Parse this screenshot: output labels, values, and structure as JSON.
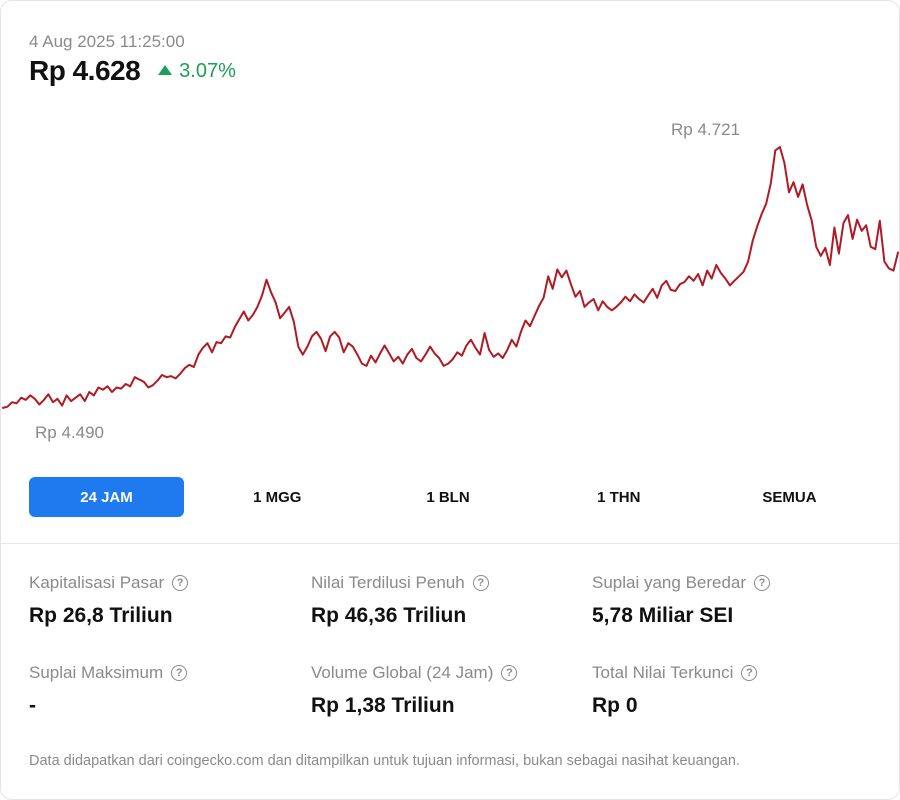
{
  "header": {
    "timestamp": "4 Aug 2025 11:25:00",
    "price": "Rp 4.628",
    "change": "3.07%",
    "change_color": "#1aa05a"
  },
  "chart_data": {
    "type": "line",
    "color": "#b01a24",
    "high_label": "Rp 4.721",
    "low_label": "Rp 4.490",
    "high": 4721,
    "low": 4490,
    "values": [
      4491,
      4492,
      4496,
      4495,
      4500,
      4498,
      4502,
      4499,
      4494,
      4498,
      4503,
      4496,
      4499,
      4493,
      4502,
      4497,
      4500,
      4503,
      4497,
      4505,
      4502,
      4509,
      4507,
      4510,
      4505,
      4509,
      4508,
      4512,
      4510,
      4518,
      4516,
      4514,
      4509,
      4511,
      4515,
      4520,
      4518,
      4519,
      4517,
      4521,
      4526,
      4529,
      4527,
      4538,
      4544,
      4548,
      4540,
      4549,
      4548,
      4554,
      4553,
      4562,
      4569,
      4576,
      4568,
      4573,
      4580,
      4590,
      4604,
      4593,
      4584,
      4570,
      4575,
      4580,
      4567,
      4545,
      4538,
      4545,
      4554,
      4558,
      4552,
      4541,
      4554,
      4558,
      4553,
      4540,
      4548,
      4545,
      4538,
      4530,
      4528,
      4537,
      4531,
      4539,
      4546,
      4539,
      4532,
      4536,
      4530,
      4538,
      4543,
      4535,
      4532,
      4538,
      4545,
      4539,
      4535,
      4528,
      4530,
      4534,
      4540,
      4537,
      4546,
      4551,
      4544,
      4538,
      4557,
      4542,
      4536,
      4539,
      4535,
      4542,
      4551,
      4545,
      4558,
      4568,
      4563,
      4572,
      4581,
      4588,
      4607,
      4596,
      4613,
      4606,
      4612,
      4600,
      4589,
      4594,
      4580,
      4584,
      4587,
      4577,
      4585,
      4580,
      4577,
      4580,
      4584,
      4589,
      4585,
      4591,
      4587,
      4584,
      4590,
      4596,
      4588,
      4599,
      4603,
      4595,
      4594,
      4600,
      4602,
      4607,
      4603,
      4609,
      4599,
      4612,
      4605,
      4617,
      4610,
      4605,
      4599,
      4603,
      4607,
      4611,
      4620,
      4638,
      4651,
      4662,
      4671,
      4689,
      4718,
      4721,
      4707,
      4681,
      4690,
      4677,
      4688,
      4670,
      4656,
      4633,
      4625,
      4632,
      4617,
      4650,
      4627,
      4654,
      4661,
      4640,
      4657,
      4647,
      4652,
      4633,
      4631,
      4656,
      4620,
      4614,
      4612,
      4628
    ]
  },
  "tabs": [
    {
      "label": "24 JAM",
      "active": true
    },
    {
      "label": "1 MGG",
      "active": false
    },
    {
      "label": "1 BLN",
      "active": false
    },
    {
      "label": "1 THN",
      "active": false
    },
    {
      "label": "SEMUA",
      "active": false
    }
  ],
  "stats": [
    {
      "label": "Kapitalisasi Pasar",
      "value": "Rp 26,8 Triliun",
      "icon": "help-circle-icon"
    },
    {
      "label": "Nilai Terdilusi Penuh",
      "value": "Rp 46,36 Triliun",
      "icon": "help-circle-icon"
    },
    {
      "label": "Suplai yang Beredar",
      "value": "5,78 Miliar SEI",
      "icon": "help-circle-icon"
    },
    {
      "label": "Suplai Maksimum",
      "value": "-",
      "icon": "help-circle-icon"
    },
    {
      "label": "Volume Global (24 Jam)",
      "value": "Rp 1,38 Triliun",
      "icon": "help-circle-icon"
    },
    {
      "label": "Total Nilai Terkunci",
      "value": "Rp 0",
      "icon": "help-circle-icon"
    }
  ],
  "footer": {
    "note": "Data didapatkan dari coingecko.com dan ditampilkan untuk tujuan informasi, bukan sebagai nasihat keuangan."
  }
}
